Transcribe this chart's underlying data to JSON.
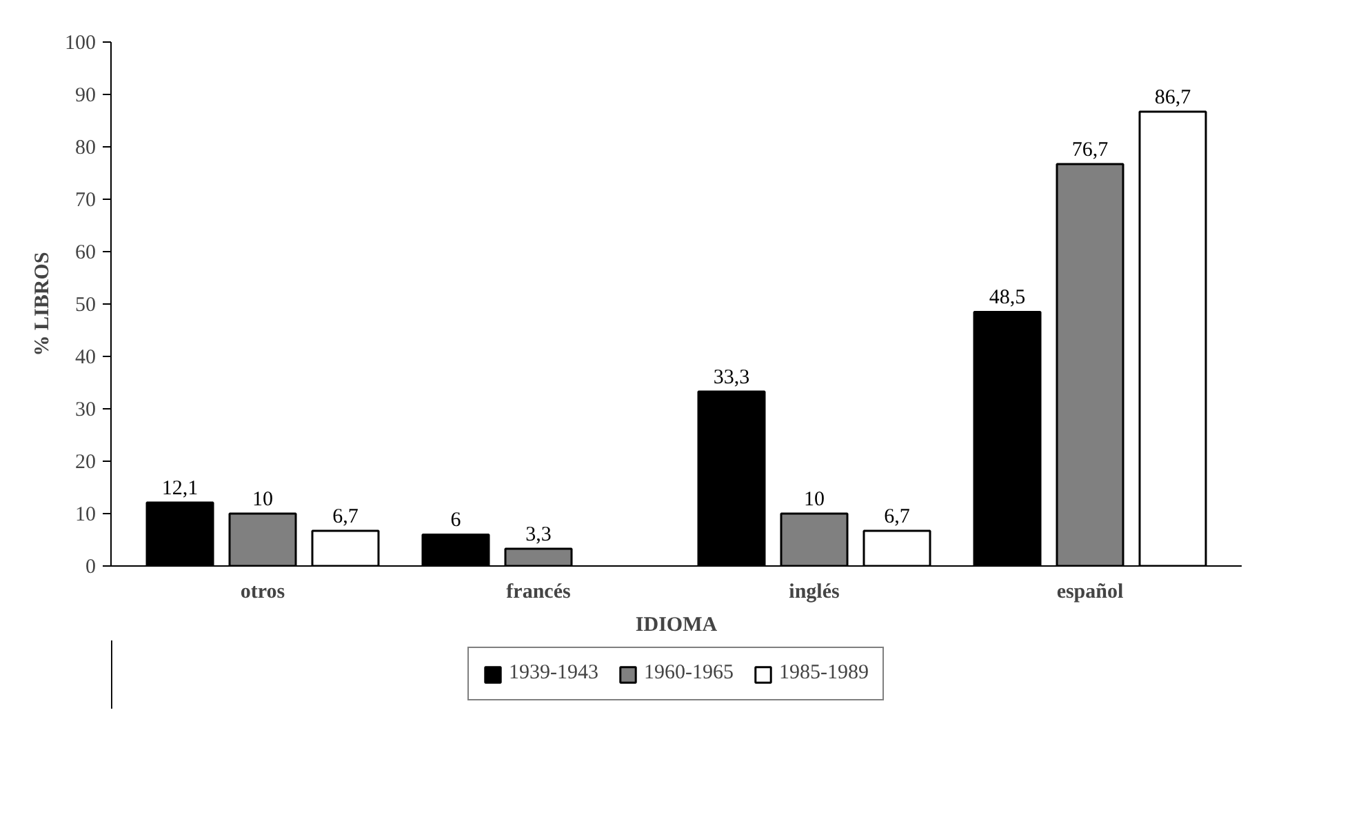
{
  "chart_data": {
    "type": "bar",
    "xlabel": "IDIOMA",
    "ylabel": "% LIBROS",
    "categories": [
      "otros",
      "francés",
      "inglés",
      "español"
    ],
    "series": [
      {
        "name": "1939-1943",
        "color": "#000000",
        "values": [
          12.1,
          6,
          33.3,
          48.5
        ],
        "value_labels": [
          "12,1",
          "6",
          "33,3",
          "48,5"
        ]
      },
      {
        "name": "1960-1965",
        "color": "#808080",
        "values": [
          10,
          3.3,
          10,
          76.7
        ],
        "value_labels": [
          "10",
          "3,3",
          "10",
          "76,7"
        ]
      },
      {
        "name": "1985-1989",
        "color": "#ffffff",
        "values": [
          6.7,
          null,
          6.7,
          86.7
        ],
        "value_labels": [
          "6,7",
          null,
          "6,7",
          "86,7"
        ]
      }
    ],
    "ylim": [
      0,
      100
    ],
    "yticks": [
      0,
      10,
      20,
      30,
      40,
      50,
      60,
      70,
      80,
      90,
      100
    ],
    "grid": false,
    "legend": "bottom"
  }
}
